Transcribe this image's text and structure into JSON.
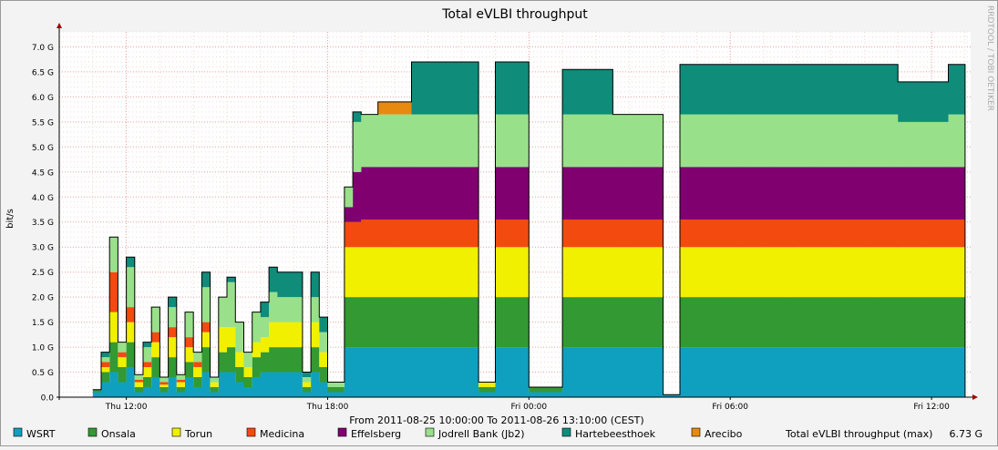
{
  "chart_data": {
    "type": "area",
    "title": "Total eVLBI throughput",
    "ylabel": "bit/s",
    "xlabel": "",
    "watermark": "RRDTOOL / TOBI OETIKER",
    "period_text": "From 2011-08-25 10:00:00 To 2011-08-26 13:10:00 (CEST)",
    "x_range": [
      "2011-08-25 10:00",
      "2011-08-26 13:10"
    ],
    "ylim": [
      0,
      7.3
    ],
    "y_unit": "G",
    "grid": true,
    "stacked": true,
    "legend_position": "bottom",
    "y_ticks": [
      {
        "v": 0,
        "label": "0.0"
      },
      {
        "v": 0.5,
        "label": "0.5 G"
      },
      {
        "v": 1,
        "label": "1.0 G"
      },
      {
        "v": 1.5,
        "label": "1.5 G"
      },
      {
        "v": 2,
        "label": "2.0 G"
      },
      {
        "v": 2.5,
        "label": "2.5 G"
      },
      {
        "v": 3,
        "label": "3.0 G"
      },
      {
        "v": 3.5,
        "label": "3.5 G"
      },
      {
        "v": 4,
        "label": "4.0 G"
      },
      {
        "v": 4.5,
        "label": "4.5 G"
      },
      {
        "v": 5,
        "label": "5.0 G"
      },
      {
        "v": 5.5,
        "label": "5.5 G"
      },
      {
        "v": 6,
        "label": "6.0 G"
      },
      {
        "v": 6.5,
        "label": "6.5 G"
      },
      {
        "v": 7,
        "label": "7.0 G"
      }
    ],
    "x_ticks": [
      {
        "t": "2011-08-25 12:00",
        "label": "Thu 12:00"
      },
      {
        "t": "2011-08-25 18:00",
        "label": "Thu 18:00"
      },
      {
        "t": "2011-08-26 00:00",
        "label": "Fri 00:00"
      },
      {
        "t": "2011-08-26 06:00",
        "label": "Fri 06:00"
      },
      {
        "t": "2011-08-26 12:00",
        "label": "Fri 12:00"
      }
    ],
    "series": [
      {
        "name": "WSRT",
        "color": "#0fa0c0"
      },
      {
        "name": "Onsala",
        "color": "#339933"
      },
      {
        "name": "Torun",
        "color": "#f0f000"
      },
      {
        "name": "Medicina",
        "color": "#f34a10"
      },
      {
        "name": "Effelsberg",
        "color": "#800070"
      },
      {
        "name": "Jodrell Bank (Jb2)",
        "color": "#99e08a"
      },
      {
        "name": "Hartebeesthoek",
        "color": "#0f8c7a"
      },
      {
        "name": "Arecibo",
        "color": "#e88a10"
      }
    ],
    "total_label": "Total eVLBI throughput (max)",
    "total_max": "6.73 G",
    "times": [
      "2011-08-25 11:00",
      "2011-08-25 11:15",
      "2011-08-25 11:30",
      "2011-08-25 11:45",
      "2011-08-25 12:00",
      "2011-08-25 12:15",
      "2011-08-25 12:30",
      "2011-08-25 12:45",
      "2011-08-25 13:00",
      "2011-08-25 13:15",
      "2011-08-25 13:30",
      "2011-08-25 13:45",
      "2011-08-25 14:00",
      "2011-08-25 14:15",
      "2011-08-25 14:30",
      "2011-08-25 14:45",
      "2011-08-25 15:00",
      "2011-08-25 15:15",
      "2011-08-25 15:30",
      "2011-08-25 15:45",
      "2011-08-25 16:00",
      "2011-08-25 16:15",
      "2011-08-25 16:30",
      "2011-08-25 16:45",
      "2011-08-25 17:00",
      "2011-08-25 17:15",
      "2011-08-25 17:30",
      "2011-08-25 17:45",
      "2011-08-25 18:00",
      "2011-08-25 18:30",
      "2011-08-25 18:45",
      "2011-08-25 19:00",
      "2011-08-25 19:30",
      "2011-08-25 20:00",
      "2011-08-25 20:30",
      "2011-08-25 21:00",
      "2011-08-25 21:30",
      "2011-08-25 22:00",
      "2011-08-25 22:30",
      "2011-08-25 23:00",
      "2011-08-25 23:30",
      "2011-08-26 00:00",
      "2011-08-26 00:30",
      "2011-08-26 01:00",
      "2011-08-26 01:30",
      "2011-08-26 02:00",
      "2011-08-26 02:30",
      "2011-08-26 03:00",
      "2011-08-26 03:30",
      "2011-08-26 04:00",
      "2011-08-26 04:30",
      "2011-08-26 05:00",
      "2011-08-26 05:30",
      "2011-08-26 06:00",
      "2011-08-26 06:30",
      "2011-08-26 07:00",
      "2011-08-26 07:30",
      "2011-08-26 08:00",
      "2011-08-26 08:30",
      "2011-08-26 09:00",
      "2011-08-26 09:30",
      "2011-08-26 10:00",
      "2011-08-26 10:30",
      "2011-08-26 11:00",
      "2011-08-26 11:30",
      "2011-08-26 12:00",
      "2011-08-26 12:30",
      "2011-08-26 12:50",
      "2011-08-26 13:00"
    ],
    "values": [
      [
        0.1,
        0.05,
        0,
        0,
        0,
        0,
        0,
        0
      ],
      [
        0.3,
        0.2,
        0.1,
        0.1,
        0,
        0.1,
        0.1,
        0
      ],
      [
        0.5,
        0.6,
        0.6,
        0.8,
        0,
        0.7,
        0,
        0
      ],
      [
        0.3,
        0.3,
        0.2,
        0.1,
        0,
        0.2,
        0,
        0
      ],
      [
        0.6,
        0.5,
        0.4,
        0.3,
        0,
        0.8,
        0.2,
        0
      ],
      [
        0.1,
        0.1,
        0.1,
        0.05,
        0,
        0.1,
        0,
        0
      ],
      [
        0.2,
        0.2,
        0.2,
        0.1,
        0,
        0.3,
        0.1,
        0
      ],
      [
        0.4,
        0.4,
        0.3,
        0.2,
        0,
        0.5,
        0,
        0
      ],
      [
        0.1,
        0.1,
        0.05,
        0.05,
        0,
        0.1,
        0,
        0
      ],
      [
        0.4,
        0.4,
        0.4,
        0.2,
        0,
        0.4,
        0.2,
        0
      ],
      [
        0.1,
        0.1,
        0.1,
        0.05,
        0,
        0.1,
        0,
        0
      ],
      [
        0.4,
        0.3,
        0.3,
        0.2,
        0,
        0.5,
        0,
        0
      ],
      [
        0.2,
        0.2,
        0.2,
        0.1,
        0,
        0.2,
        0,
        0
      ],
      [
        0.5,
        0.5,
        0.3,
        0.2,
        0,
        0.7,
        0.3,
        0
      ],
      [
        0.1,
        0.1,
        0.1,
        0,
        0,
        0.1,
        0,
        0
      ],
      [
        0.5,
        0.4,
        0.5,
        0,
        0,
        0.6,
        0,
        0
      ],
      [
        0.5,
        0.5,
        0.4,
        0,
        0,
        0.9,
        0.1,
        0
      ],
      [
        0.3,
        0.3,
        0.3,
        0,
        0,
        0.6,
        0,
        0
      ],
      [
        0.2,
        0.2,
        0.2,
        0,
        0,
        0.3,
        0,
        0
      ],
      [
        0.4,
        0.4,
        0.3,
        0,
        0,
        0.6,
        0,
        0
      ],
      [
        0.5,
        0.4,
        0.3,
        0,
        0,
        0.4,
        0.3,
        0
      ],
      [
        0.5,
        0.5,
        0.5,
        0,
        0,
        0.6,
        0.5,
        0
      ],
      [
        0.5,
        0.5,
        0.5,
        0,
        0,
        0.5,
        0.5,
        0
      ],
      [
        0.5,
        0.5,
        0.5,
        0,
        0,
        0.5,
        0.5,
        0
      ],
      [
        0.5,
        0.5,
        0.5,
        0,
        0,
        0.5,
        0.5,
        0
      ],
      [
        0.1,
        0.1,
        0.1,
        0,
        0,
        0.1,
        0.1,
        0
      ],
      [
        0.5,
        0.5,
        0.5,
        0,
        0,
        0.5,
        0.5,
        0
      ],
      [
        0.3,
        0.3,
        0.3,
        0,
        0,
        0.4,
        0.3,
        0
      ],
      [
        0.1,
        0.1,
        0,
        0,
        0,
        0.1,
        0,
        0
      ],
      [
        1.0,
        1.0,
        1.0,
        0.5,
        0.3,
        0.4,
        0,
        0
      ],
      [
        1.0,
        1.0,
        1.0,
        0.5,
        1.0,
        1.0,
        0.2,
        0
      ],
      [
        1.0,
        1.0,
        1.0,
        0.55,
        1.05,
        1.05,
        0,
        0
      ],
      [
        1.0,
        1.0,
        1.0,
        0.55,
        1.05,
        1.05,
        0,
        0.25
      ],
      [
        1.0,
        1.0,
        1.0,
        0.55,
        1.05,
        1.05,
        0,
        0.25
      ],
      [
        1.0,
        1.0,
        1.0,
        0.55,
        1.05,
        1.05,
        1.05,
        0
      ],
      [
        1.0,
        1.0,
        1.0,
        0.55,
        1.05,
        1.05,
        1.05,
        0
      ],
      [
        1.0,
        1.0,
        1.0,
        0.55,
        1.05,
        1.05,
        1.05,
        0
      ],
      [
        1.0,
        1.0,
        1.0,
        0.55,
        1.05,
        1.05,
        1.05,
        0
      ],
      [
        0.1,
        0.1,
        0.1,
        0,
        0,
        0,
        0,
        0
      ],
      [
        1.0,
        1.0,
        1.0,
        0.55,
        1.05,
        1.05,
        1.05,
        0
      ],
      [
        1.0,
        1.0,
        1.0,
        0.55,
        1.05,
        1.05,
        1.05,
        0
      ],
      [
        0.1,
        0.1,
        0,
        0,
        0,
        0,
        0,
        0
      ],
      [
        0.1,
        0.1,
        0,
        0,
        0,
        0,
        0,
        0
      ],
      [
        1.0,
        1.0,
        1.0,
        0.55,
        1.05,
        1.05,
        0.9,
        0
      ],
      [
        1.0,
        1.0,
        1.0,
        0.55,
        1.05,
        1.05,
        0.9,
        0
      ],
      [
        1.0,
        1.0,
        1.0,
        0.55,
        1.05,
        1.05,
        0.9,
        0
      ],
      [
        1.0,
        1.0,
        1.0,
        0.55,
        1.05,
        1.05,
        0,
        0
      ],
      [
        1.0,
        1.0,
        1.0,
        0.55,
        1.05,
        1.05,
        0,
        0
      ],
      [
        1.0,
        1.0,
        1.0,
        0.55,
        1.05,
        1.05,
        0,
        0
      ],
      [
        0.05,
        0,
        0,
        0,
        0,
        0,
        0,
        0
      ],
      [
        1.0,
        1.0,
        1.0,
        0.55,
        1.05,
        1.05,
        1.0,
        0
      ],
      [
        1.0,
        1.0,
        1.0,
        0.55,
        1.05,
        1.05,
        1.0,
        0
      ],
      [
        1.0,
        1.0,
        1.0,
        0.55,
        1.05,
        1.05,
        1.0,
        0
      ],
      [
        1.0,
        1.0,
        1.0,
        0.55,
        1.05,
        1.05,
        1.0,
        0
      ],
      [
        1.0,
        1.0,
        1.0,
        0.55,
        1.05,
        1.05,
        1.0,
        0
      ],
      [
        1.0,
        1.0,
        1.0,
        0.55,
        1.05,
        1.05,
        1.0,
        0
      ],
      [
        1.0,
        1.0,
        1.0,
        0.55,
        1.05,
        1.05,
        1.0,
        0
      ],
      [
        1.0,
        1.0,
        1.0,
        0.55,
        1.05,
        1.05,
        1.0,
        0
      ],
      [
        1.0,
        1.0,
        1.0,
        0.55,
        1.05,
        1.05,
        1.0,
        0
      ],
      [
        1.0,
        1.0,
        1.0,
        0.55,
        1.05,
        1.05,
        1.0,
        0
      ],
      [
        1.0,
        1.0,
        1.0,
        0.55,
        1.05,
        1.05,
        1.0,
        0
      ],
      [
        1.0,
        1.0,
        1.0,
        0.55,
        1.05,
        1.05,
        1.0,
        0
      ],
      [
        1.0,
        1.0,
        1.0,
        0.55,
        1.05,
        1.05,
        1.0,
        0
      ],
      [
        1.0,
        1.0,
        1.0,
        0.55,
        1.05,
        0.9,
        0.8,
        0
      ],
      [
        1.0,
        1.0,
        1.0,
        0.55,
        1.05,
        0.9,
        0.8,
        0
      ],
      [
        1.0,
        1.0,
        1.0,
        0.55,
        1.05,
        0.9,
        0.8,
        0
      ],
      [
        1.0,
        1.0,
        1.0,
        0.55,
        1.05,
        1.05,
        1.0,
        0
      ],
      [
        1.0,
        1.0,
        1.0,
        0.55,
        1.05,
        1.05,
        1.0,
        0
      ],
      [
        0,
        0,
        0,
        0,
        0,
        0,
        0,
        0
      ]
    ]
  }
}
